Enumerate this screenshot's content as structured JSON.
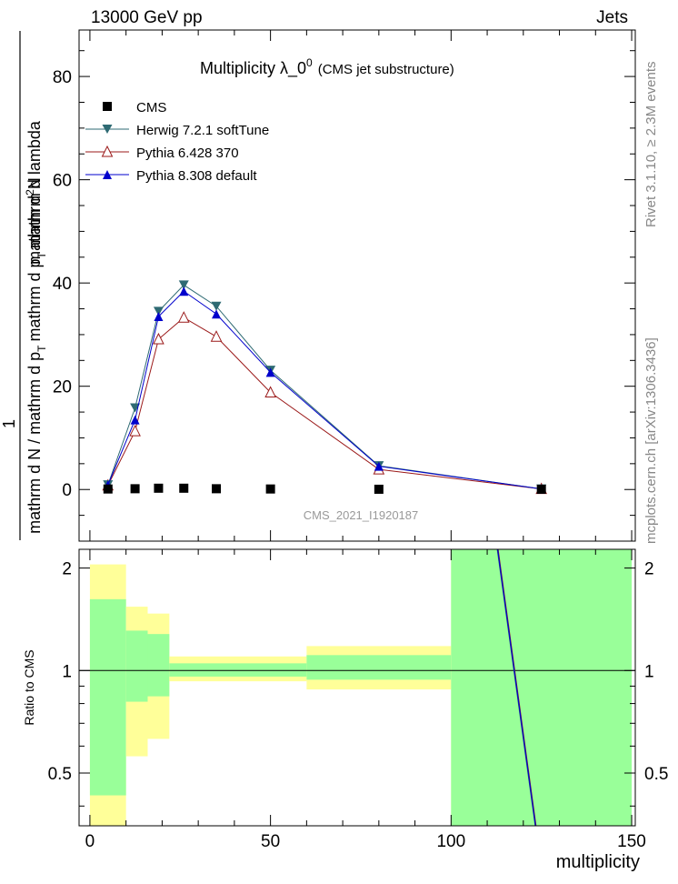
{
  "header": {
    "left": "13000 GeV pp",
    "right": "Jets"
  },
  "side_text": {
    "rivet": "Rivet 3.1.10, ≥ 2.3M events",
    "mcplots": "mcplots.cern.ch [arXiv:1306.3436]"
  },
  "chart_data": [
    {
      "type": "line",
      "title_main": "Multiplicity  λ_0",
      "title_sup": "0",
      "title_sub": "(CMS jet substructure)",
      "watermark": "CMS_2021_I1920187",
      "ylabel": {
        "numer": "1",
        "denom_main": "mathrm d N / mathrm d p",
        "denom_sub1": "T",
        "denom_mid": "mathrm d p",
        "denom_sub2": "T",
        "denom_end": "mathrm d lambda",
        "num2_main": "mathrm d",
        "num2_sup": "2",
        "num2_end": "N"
      },
      "xlim": [
        -3,
        151
      ],
      "ylim": [
        -10,
        89
      ],
      "yticks": [
        "0",
        "20",
        "40",
        "60",
        "80"
      ],
      "legend_position": "top-left",
      "series": [
        {
          "name": "CMS",
          "color": "#000000",
          "marker": "square",
          "x": [
            5,
            12.5,
            19,
            26,
            35,
            50,
            80,
            125
          ],
          "y": [
            0.1,
            0.15,
            0.25,
            0.25,
            0.15,
            0.1,
            0.05,
            0.05
          ]
        },
        {
          "name": "Herwig 7.2.1 softTune",
          "color": "#2e6a73",
          "marker": "triangle-down",
          "x": [
            5,
            12.5,
            19,
            26,
            35,
            50,
            80,
            125
          ],
          "y": [
            0.9,
            15.8,
            34.5,
            39.6,
            35.5,
            23.1,
            4.6,
            0.1
          ]
        },
        {
          "name": "Pythia 6.428 370",
          "color": "#9b1a1a",
          "marker": "triangle-open",
          "x": [
            5,
            12.5,
            19,
            26,
            35,
            50,
            80,
            125
          ],
          "y": [
            0.8,
            11.3,
            29.1,
            33.3,
            29.6,
            18.8,
            3.9,
            0.1
          ]
        },
        {
          "name": "Pythia 8.308 default",
          "color": "#0000cc",
          "marker": "triangle-up",
          "x": [
            5,
            12.5,
            19,
            26,
            35,
            50,
            80,
            125
          ],
          "y": [
            0.9,
            13.5,
            33.5,
            38.4,
            34.0,
            22.7,
            4.5,
            0.1
          ]
        }
      ]
    },
    {
      "type": "area",
      "ylabel": "Ratio to CMS",
      "xlabel": "multiplicity",
      "xlim": [
        -3,
        151
      ],
      "ylim": [
        0.35,
        2.27
      ],
      "xticks": [
        "0",
        "50",
        "100",
        "150"
      ],
      "yticks": [
        "0.5",
        "1",
        "2"
      ],
      "bins": [
        {
          "x": [
            0,
            10
          ],
          "band_outer": [
            0.25,
            2.05
          ],
          "band_inner": [
            0.43,
            1.62
          ]
        },
        {
          "x": [
            10,
            16
          ],
          "band_outer": [
            0.56,
            1.54
          ],
          "band_inner": [
            0.81,
            1.31
          ]
        },
        {
          "x": [
            16,
            22
          ],
          "band_outer": [
            0.63,
            1.47
          ],
          "band_inner": [
            0.84,
            1.28
          ]
        },
        {
          "x": [
            22,
            60
          ],
          "band_outer": [
            0.93,
            1.1
          ],
          "band_inner": [
            0.96,
            1.05
          ]
        },
        {
          "x": [
            60,
            100
          ],
          "band_outer": [
            0.88,
            1.18
          ],
          "band_inner": [
            0.94,
            1.11
          ]
        },
        {
          "x": [
            100,
            150
          ],
          "band_outer": [
            0.3,
            2.4
          ],
          "band_inner": [
            0.3,
            2.4
          ]
        }
      ],
      "band_colors": {
        "outer": "#ffff99",
        "inner": "#99ff99"
      },
      "ratio_lines": [
        {
          "series": "Herwig 7.2.1 softTune",
          "color": "#2e6a73",
          "x": [
            112.8,
            123.3
          ],
          "y": [
            2.35,
            0.33
          ]
        },
        {
          "series": "Pythia 6.428 370",
          "color": "#9b1a1a",
          "x": [
            113.0,
            123.5
          ],
          "y": [
            2.35,
            0.33
          ]
        },
        {
          "series": "Pythia 8.308 default",
          "color": "#0000cc",
          "x": [
            112.9,
            123.4
          ],
          "y": [
            2.35,
            0.33
          ]
        }
      ]
    }
  ]
}
